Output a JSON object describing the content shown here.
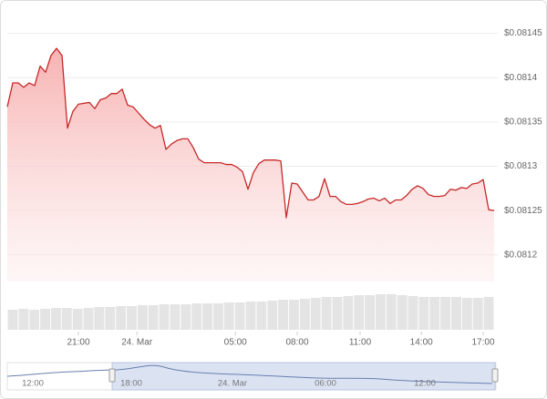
{
  "chart_data": {
    "type": "line",
    "color": "#c62828",
    "grid": true,
    "values": [
      0.081367,
      0.081394,
      0.081394,
      0.081389,
      0.081394,
      0.081391,
      0.081413,
      0.081406,
      0.081425,
      0.081433,
      0.081425,
      0.081343,
      0.081362,
      0.08137,
      0.081371,
      0.081372,
      0.081365,
      0.081375,
      0.081377,
      0.081382,
      0.081382,
      0.081387,
      0.081369,
      0.081367,
      0.08136,
      0.081353,
      0.081347,
      0.081343,
      0.081346,
      0.081319,
      0.081325,
      0.081329,
      0.081331,
      0.081331,
      0.081321,
      0.081308,
      0.081304,
      0.081304,
      0.081304,
      0.081304,
      0.081302,
      0.081302,
      0.081299,
      0.081294,
      0.081274,
      0.081293,
      0.081303,
      0.081307,
      0.081307,
      0.081307,
      0.081306,
      0.081242,
      0.081281,
      0.08128,
      0.081271,
      0.081262,
      0.081262,
      0.081266,
      0.081286,
      0.081266,
      0.081266,
      0.08126,
      0.081257,
      0.081257,
      0.081258,
      0.08126,
      0.081263,
      0.081264,
      0.081261,
      0.081264,
      0.081258,
      0.081262,
      0.081262,
      0.081267,
      0.081274,
      0.081278,
      0.081275,
      0.081268,
      0.081266,
      0.081266,
      0.081267,
      0.081274,
      0.081273,
      0.081276,
      0.081275,
      0.08128,
      0.081281,
      0.081285,
      0.081251,
      0.08125
    ],
    "xlim": [
      0,
      89
    ],
    "xticks": [
      {
        "value": 13,
        "label": "21:00"
      },
      {
        "value": 23.7,
        "label": "24. Mar"
      },
      {
        "value": 41.7,
        "label": "05:00"
      },
      {
        "value": 53,
        "label": "08:00"
      },
      {
        "value": 64.5,
        "label": "11:00"
      },
      {
        "value": 75.7,
        "label": "14:00"
      },
      {
        "value": 87,
        "label": "17:00"
      }
    ],
    "ylim": [
      0.08117,
      0.081467
    ],
    "yticks": [
      {
        "value": 0.0812,
        "label": "$0.0812"
      },
      {
        "value": 0.08125,
        "label": "$0.08125"
      },
      {
        "value": 0.0813,
        "label": "$0.0813"
      },
      {
        "value": 0.08135,
        "label": "$0.08135"
      },
      {
        "value": 0.0814,
        "label": "$0.0814"
      },
      {
        "value": 0.08145,
        "label": "$0.08145"
      }
    ],
    "volume": {
      "color": "#e4e4e4",
      "ylim": [
        0,
        60
      ],
      "values": [
        22,
        23,
        22,
        23,
        24,
        24,
        23,
        24,
        25,
        25,
        26,
        26,
        27,
        27,
        28,
        28,
        28,
        29,
        29,
        29,
        30,
        30,
        31,
        31,
        32,
        33,
        33,
        34,
        35,
        36,
        36,
        37,
        38,
        38,
        39,
        39,
        38,
        37,
        36,
        36,
        36,
        36,
        35,
        35,
        36
      ]
    }
  },
  "navigator": {
    "labels": [
      "12:00",
      "18:00",
      "24. Mar",
      "06:00",
      "12:00"
    ]
  }
}
